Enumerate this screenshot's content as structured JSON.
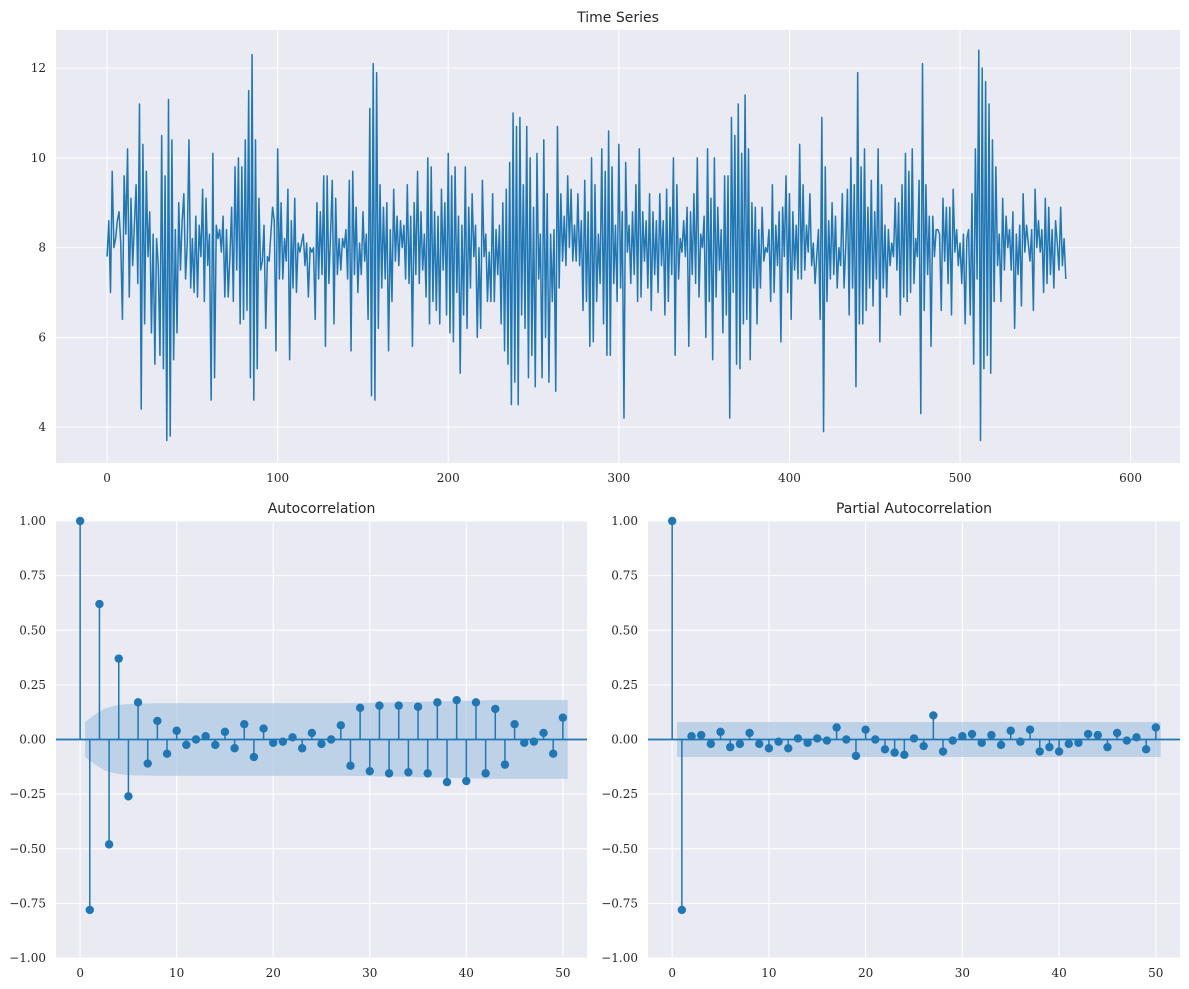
{
  "figure": {
    "background": "#ffffff",
    "axes_background": "#eaeaf2",
    "line_color": "#1f77b4",
    "band_color": "#9ebfdf"
  },
  "chart_data": [
    {
      "type": "line",
      "title": "Time Series",
      "xlabel": "",
      "ylabel": "",
      "xlim": [
        -29.95,
        628.95
      ],
      "ylim": [
        3.2,
        12.85
      ],
      "xticks": [
        0,
        100,
        200,
        300,
        400,
        500,
        600
      ],
      "yticks": [
        4,
        6,
        8,
        10,
        12
      ],
      "grid": true,
      "y": [
        7.8,
        8.6,
        7.0,
        9.7,
        8.0,
        8.2,
        8.6,
        8.8,
        8.1,
        6.4,
        9.6,
        8.3,
        10.2,
        6.9,
        9.1,
        7.6,
        8.5,
        9.4,
        7.2,
        11.2,
        4.4,
        10.3,
        6.3,
        9.7,
        7.8,
        8.8,
        6.1,
        8.3,
        5.4,
        8.2,
        7.6,
        5.6,
        10.5,
        5.3,
        9.6,
        3.7,
        11.3,
        3.8,
        10.4,
        5.5,
        8.4,
        6.1,
        9.0,
        7.5,
        8.6,
        9.2,
        7.3,
        8.1,
        10.4,
        7.1,
        8.2,
        7.0,
        8.7,
        6.9,
        8.5,
        7.8,
        9.3,
        6.8,
        9.1,
        7.6,
        8.3,
        4.6,
        10.1,
        5.1,
        8.5,
        8.2,
        8.4,
        7.9,
        8.7,
        6.9,
        8.4,
        6.9,
        7.8,
        8.9,
        6.8,
        9.8,
        7.5,
        10.0,
        6.3,
        9.8,
        6.4,
        10.4,
        6.6,
        11.5,
        5.1,
        12.3,
        4.6,
        10.4,
        5.3,
        9.1,
        7.5,
        7.7,
        8.5,
        6.2,
        7.8,
        7.7,
        8.3,
        8.9,
        8.6,
        5.7,
        10.2,
        7.3,
        9.0,
        7.3,
        8.2,
        7.7,
        9.3,
        5.5,
        8.6,
        7.1,
        9.1,
        7.0,
        8.1,
        7.9,
        8.1,
        8.3,
        7.6,
        8.1,
        6.9,
        8.0,
        7.9,
        8.0,
        6.4,
        9.0,
        7.3,
        8.8,
        7.4,
        9.6,
        5.8,
        9.6,
        7.2,
        8.3,
        9.5,
        6.3,
        9.1,
        7.4,
        8.2,
        7.5,
        8.2,
        8.0,
        8.4,
        7.3,
        9.5,
        5.7,
        9.7,
        7.4,
        8.9,
        7.0,
        8.1,
        7.4,
        8.8,
        7.7,
        8.3,
        6.4,
        11.1,
        4.7,
        12.1,
        4.6,
        11.9,
        6.2,
        9.4,
        7.1,
        8.9,
        7.3,
        9.0,
        5.7,
        8.4,
        6.8,
        9.3,
        7.7,
        8.7,
        7.6,
        8.6,
        8.0,
        8.5,
        7.3,
        9.4,
        7.2,
        8.7,
        5.8,
        9.0,
        7.4,
        9.7,
        7.2,
        8.8,
        7.5,
        8.3,
        6.9,
        10.0,
        6.3,
        9.8,
        6.8,
        8.8,
        6.6,
        8.7,
        6.3,
        9.3,
        7.5,
        9.0,
        6.5,
        10.1,
        6.1,
        9.6,
        5.9,
        9.8,
        7.0,
        8.7,
        5.2,
        8.5,
        6.5,
        9.8,
        6.2,
        8.9,
        7.1,
        9.2,
        7.8,
        8.5,
        6.0,
        8.0,
        6.2,
        9.5,
        7.8,
        8.3,
        6.8,
        7.9,
        6.8,
        9.2,
        6.8,
        8.4,
        7.4,
        8.5,
        6.3,
        9.0,
        5.7,
        9.3,
        5.4,
        9.9,
        4.5,
        11.0,
        5.0,
        10.7,
        4.5,
        10.9,
        6.5,
        9.4,
        6.2,
        10.7,
        5.1,
        10.0,
        5.6,
        8.9,
        4.9,
        10.1,
        7.3,
        8.3,
        5.1,
        10.4,
        6.0,
        9.2,
        5.0,
        8.3,
        6.8,
        8.4,
        4.8,
        10.7,
        7.1,
        9.2,
        7.7,
        8.7,
        7.6,
        9.6,
        8.0,
        9.3,
        7.7,
        8.5,
        7.7,
        9.2,
        7.6,
        8.6,
        6.6,
        9.5,
        6.8,
        8.8,
        5.8,
        10.0,
        5.9,
        9.4,
        6.8,
        8.3,
        7.2,
        10.2,
        6.3,
        9.7,
        5.6,
        10.6,
        5.6,
        9.8,
        7.2,
        8.5,
        6.8,
        10.3,
        7.1,
        8.8,
        4.2,
        9.9,
        7.9,
        8.5,
        7.2,
        8.8,
        7.4,
        9.4,
        6.8,
        10.2,
        6.9,
        8.8,
        7.7,
        8.6,
        7.1,
        9.2,
        6.6,
        8.8,
        7.4,
        8.6,
        7.0,
        9.2,
        7.6,
        8.6,
        6.5,
        9.3,
        6.8,
        8.9,
        7.4,
        10.0,
        5.6,
        9.4,
        7.3,
        8.2,
        7.9,
        8.6,
        7.8,
        8.9,
        5.8,
        8.8,
        7.4,
        9.2,
        7.2,
        10.0,
        6.9,
        8.3,
        8.0,
        8.7,
        6.0,
        10.2,
        6.8,
        9.1,
        5.5,
        10.0,
        6.9,
        8.9,
        7.5,
        8.4,
        6.1,
        9.6,
        6.5,
        9.6,
        4.2,
        10.9,
        7.0,
        10.5,
        5.4,
        11.2,
        5.3,
        10.1,
        6.3,
        11.4,
        6.4,
        10.2,
        5.5,
        9.0,
        7.1,
        8.9,
        6.3,
        8.4,
        7.1,
        8.9,
        7.7,
        8.0,
        7.9,
        8.4,
        6.8,
        9.4,
        7.0,
        8.5,
        7.6,
        8.8,
        5.9,
        8.9,
        7.8,
        9.6,
        7.0,
        9.2,
        6.4,
        8.8,
        7.5,
        8.5,
        7.3,
        10.3,
        7.3,
        9.4,
        7.5,
        8.5,
        7.9,
        9.2,
        7.6,
        8.1,
        7.2,
        7.8,
        8.4,
        6.4,
        10.9,
        3.9,
        9.8,
        6.8,
        8.6,
        7.3,
        9.0,
        7.4,
        8.7,
        7.1,
        8.0,
        7.6,
        9.2,
        7.1,
        8.0,
        9.3,
        6.5,
        10.0,
        7.1,
        9.4,
        4.9,
        11.9,
        6.3,
        9.8,
        6.3,
        10.2,
        6.6,
        8.9,
        7.1,
        9.5,
        6.7,
        8.8,
        7.3,
        10.2,
        5.9,
        9.4,
        7.1,
        8.5,
        6.9,
        8.4,
        7.6,
        8.1,
        7.8,
        9.1,
        7.5,
        9.0,
        6.5,
        9.4,
        6.9,
        10.1,
        6.8,
        9.7,
        7.0,
        10.2,
        7.2,
        8.2,
        7.8,
        9.5,
        4.3,
        12.1,
        6.6,
        9.4,
        7.4,
        8.7,
        5.8,
        8.7,
        7.8,
        8.4,
        8.4,
        8.3,
        6.6,
        9.1,
        7.7,
        8.9,
        7.2,
        8.9,
        6.5,
        9.3,
        7.9,
        8.4,
        7.6,
        8.1,
        7.2,
        8.3,
        6.3,
        8.2,
        8.4,
        6.5,
        9.2,
        5.4,
        10.2,
        7.3,
        12.4,
        3.7,
        12.0,
        5.3,
        11.7,
        5.6,
        11.2,
        5.2,
        10.4,
        6.8,
        9.8,
        7.6,
        8.3,
        6.8,
        9.1,
        7.5,
        8.7,
        8.0,
        8.4,
        7.5,
        8.8,
        6.2,
        8.3,
        7.4,
        8.5,
        6.7,
        9.2,
        7.9,
        8.5,
        8.1,
        7.7,
        8.4,
        6.6,
        9.3,
        8.0,
        8.6,
        7.9,
        8.4,
        7.0,
        9.1,
        7.2,
        8.9,
        7.4,
        8.4,
        7.1,
        8.6,
        8.1,
        7.5,
        8.9,
        7.6,
        8.2,
        7.3
      ]
    },
    {
      "type": "scatter",
      "subtype": "stem",
      "title": "Autocorrelation",
      "xlabel": "",
      "ylabel": "",
      "xlim": [
        -2.5,
        52.5
      ],
      "ylim": [
        -1.0,
        1.0
      ],
      "xticks": [
        0,
        10,
        20,
        30,
        40,
        50
      ],
      "yticks": [
        -1.0,
        -0.75,
        -0.5,
        -0.25,
        0.0,
        0.25,
        0.5,
        0.75,
        1.0
      ],
      "ytick_labels": [
        "−1.00",
        "−0.75",
        "−0.50",
        "−0.25",
        "0.00",
        "0.25",
        "0.50",
        "0.75",
        "1.00"
      ],
      "grid": true,
      "x": [
        0,
        1,
        2,
        3,
        4,
        5,
        6,
        7,
        8,
        9,
        10,
        11,
        12,
        13,
        14,
        15,
        16,
        17,
        18,
        19,
        20,
        21,
        22,
        23,
        24,
        25,
        26,
        27,
        28,
        29,
        30,
        31,
        32,
        33,
        34,
        35,
        36,
        37,
        38,
        39,
        40,
        41,
        42,
        43,
        44,
        45,
        46,
        47,
        48,
        49,
        50
      ],
      "values": [
        1.0,
        -0.78,
        0.62,
        -0.48,
        0.37,
        -0.26,
        0.17,
        -0.11,
        0.085,
        -0.065,
        0.04,
        -0.025,
        0.0,
        0.015,
        -0.025,
        0.035,
        -0.04,
        0.07,
        -0.08,
        0.05,
        -0.015,
        -0.01,
        0.01,
        -0.04,
        0.03,
        -0.02,
        0.0,
        0.065,
        -0.12,
        0.145,
        -0.145,
        0.155,
        -0.155,
        0.155,
        -0.15,
        0.15,
        -0.155,
        0.17,
        -0.195,
        0.18,
        -0.19,
        0.17,
        -0.155,
        0.14,
        -0.115,
        0.07,
        -0.015,
        -0.01,
        0.03,
        -0.065,
        0.1
      ],
      "confidence_band_halfwidth": [
        0.08,
        0.113,
        0.141,
        0.154,
        0.161,
        0.164,
        0.165,
        0.166,
        0.166,
        0.166,
        0.166,
        0.166,
        0.166,
        0.166,
        0.166,
        0.166,
        0.166,
        0.166,
        0.166,
        0.166,
        0.166,
        0.166,
        0.166,
        0.166,
        0.166,
        0.166,
        0.166,
        0.166,
        0.167,
        0.167,
        0.168,
        0.169,
        0.17,
        0.171,
        0.172,
        0.173,
        0.174,
        0.175,
        0.176,
        0.177,
        0.178,
        0.179,
        0.18,
        0.18,
        0.18,
        0.18,
        0.18,
        0.18,
        0.18,
        0.18,
        0.18
      ]
    },
    {
      "type": "scatter",
      "subtype": "stem",
      "title": "Partial Autocorrelation",
      "xlabel": "",
      "ylabel": "",
      "xlim": [
        -2.5,
        52.5
      ],
      "ylim": [
        -1.0,
        1.0
      ],
      "xticks": [
        0,
        10,
        20,
        30,
        40,
        50
      ],
      "yticks": [
        -1.0,
        -0.75,
        -0.5,
        -0.25,
        0.0,
        0.25,
        0.5,
        0.75,
        1.0
      ],
      "ytick_labels": [
        "−1.00",
        "−0.75",
        "−0.50",
        "−0.25",
        "0.00",
        "0.25",
        "0.50",
        "0.75",
        "1.00"
      ],
      "grid": true,
      "x": [
        0,
        1,
        2,
        3,
        4,
        5,
        6,
        7,
        8,
        9,
        10,
        11,
        12,
        13,
        14,
        15,
        16,
        17,
        18,
        19,
        20,
        21,
        22,
        23,
        24,
        25,
        26,
        27,
        28,
        29,
        30,
        31,
        32,
        33,
        34,
        35,
        36,
        37,
        38,
        39,
        40,
        41,
        42,
        43,
        44,
        45,
        46,
        47,
        48,
        49,
        50
      ],
      "values": [
        1.0,
        -0.78,
        0.015,
        0.02,
        -0.02,
        0.035,
        -0.035,
        -0.02,
        0.03,
        -0.02,
        -0.04,
        -0.01,
        -0.04,
        0.005,
        -0.015,
        0.005,
        -0.005,
        0.055,
        0.0,
        -0.075,
        0.045,
        0.0,
        -0.045,
        -0.06,
        -0.07,
        0.005,
        -0.03,
        0.11,
        -0.055,
        -0.005,
        0.015,
        0.025,
        -0.015,
        0.02,
        -0.025,
        0.04,
        -0.01,
        0.045,
        -0.055,
        -0.035,
        -0.055,
        -0.02,
        -0.015,
        0.025,
        0.02,
        -0.035,
        0.03,
        -0.005,
        0.01,
        -0.045,
        0.055
      ],
      "confidence_band_halfwidth": 0.08
    }
  ]
}
